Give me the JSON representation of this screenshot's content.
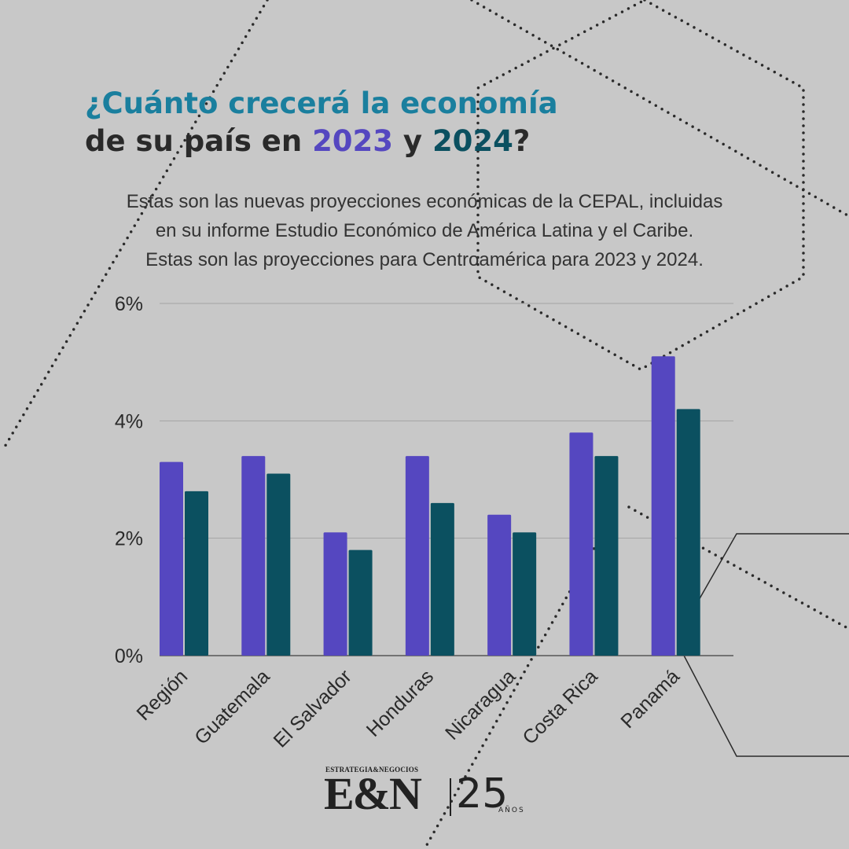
{
  "header": {
    "line1": "¿Cuánto crecerá la economía",
    "line2_pre": "de su país en ",
    "year1": "2023",
    "line2_mid": " y ",
    "year2": "2024",
    "line2_post": "?"
  },
  "description": [
    "Estas son las nuevas proyecciones económicas de la CEPAL, incluidas",
    "en su informe Estudio Económico de América Latina y el Caribe.",
    "Estas son las proyecciones para Centroamérica para 2023 y 2024."
  ],
  "chart_data": {
    "type": "bar",
    "title": "",
    "xlabel": "",
    "ylabel": "",
    "categories": [
      "Región",
      "Guatemala",
      "El Salvador",
      "Honduras",
      "Nicaragua",
      "Costa Rica",
      "Panamá"
    ],
    "series": [
      {
        "values": [
          3.3,
          3.4,
          2.1,
          3.4,
          2.4,
          3.8,
          5.1
        ],
        "color": "#5547c0"
      },
      {
        "values": [
          2.8,
          3.1,
          1.8,
          2.6,
          2.1,
          3.4,
          4.2
        ],
        "color": "#0b5060"
      }
    ],
    "ylim": [
      0,
      6
    ],
    "yticks": [
      0,
      2,
      4,
      6
    ],
    "ytick_labels": [
      "0%",
      "2%",
      "4%",
      "6%"
    ],
    "grid": true,
    "legend": "none"
  },
  "logo": {
    "small_text": "ESTRATEGIA&NEGOCIOS",
    "main_text": "E&N",
    "number": "25",
    "anos": "AÑOS"
  }
}
